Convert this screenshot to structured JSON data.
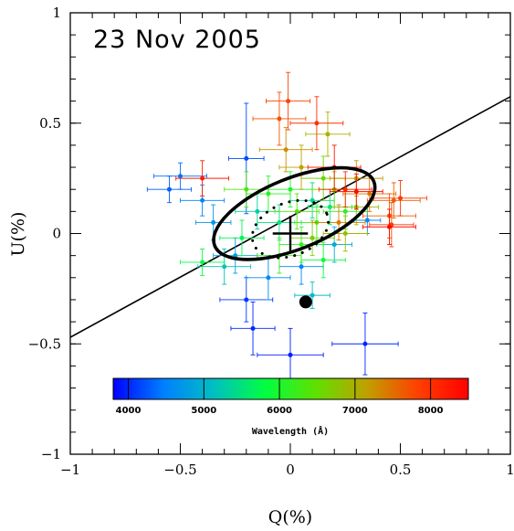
{
  "chart_data": {
    "type": "scatter",
    "title": "23 Nov 2005",
    "xlabel": "Q(%)",
    "ylabel": "U(%)",
    "xlim": [
      -1,
      1
    ],
    "ylim": [
      -1,
      1
    ],
    "x_ticks": [
      "−1",
      "−0.5",
      "0",
      "0.5",
      "1"
    ],
    "y_ticks": [
      "−1",
      "−0.5",
      "0",
      "0.5",
      "1"
    ],
    "x_tick_values": [
      -1,
      -0.5,
      0,
      0.5,
      1
    ],
    "y_tick_values": [
      -1,
      -0.5,
      0,
      0.5,
      1
    ],
    "grid": false,
    "colorbar": {
      "label": "Wavelength (Å)",
      "range": [
        3800,
        8500
      ],
      "ticks": [
        4000,
        5000,
        6000,
        7000,
        8000
      ],
      "tick_labels": [
        "4000",
        "5000",
        "6000",
        "7000",
        "8000"
      ],
      "colors": [
        "#0000ff",
        "#0080ff",
        "#00c0c0",
        "#00ff40",
        "#60e000",
        "#c0a000",
        "#ff4000",
        "#ff0000"
      ]
    },
    "fit_line": {
      "slope": 0.545,
      "intercept": 0.075
    },
    "mean_point": {
      "q": 0.0,
      "u": 0.0,
      "err_q": 0.08,
      "err_u": 0.08
    },
    "ellipse": {
      "center": [
        0.018,
        0.09
      ],
      "semi_major": 0.39,
      "semi_minor": 0.16,
      "angle_deg": 22
    },
    "dotted_ellipse": {
      "center": [
        0.0,
        0.02
      ],
      "semi_major": 0.18,
      "semi_minor": 0.12,
      "angle_deg": 22
    },
    "isp_point": {
      "q": 0.07,
      "u": -0.31
    },
    "series": [
      {
        "points": [
          {
            "q": -0.5,
            "u": 0.26,
            "w": 4400,
            "eq": 0.12,
            "eu": 0.06
          },
          {
            "q": -0.55,
            "u": 0.2,
            "w": 4300,
            "eq": 0.1,
            "eu": 0.06
          },
          {
            "q": -0.4,
            "u": 0.15,
            "w": 4500,
            "eq": 0.1,
            "eu": 0.07
          },
          {
            "q": -0.2,
            "u": 0.34,
            "w": 4200,
            "eq": 0.08,
            "eu": 0.25
          },
          {
            "q": -0.2,
            "u": -0.3,
            "w": 4100,
            "eq": 0.12,
            "eu": 0.1
          },
          {
            "q": -0.17,
            "u": -0.43,
            "w": 4000,
            "eq": 0.1,
            "eu": 0.12
          },
          {
            "q": 0.0,
            "u": -0.55,
            "w": 3950,
            "eq": 0.15,
            "eu": 0.12
          },
          {
            "q": 0.34,
            "u": -0.5,
            "w": 4000,
            "eq": 0.15,
            "eu": 0.14
          },
          {
            "q": 0.35,
            "u": 0.06,
            "w": 4600,
            "eq": 0.06,
            "eu": 0.06
          },
          {
            "q": -0.35,
            "u": 0.05,
            "w": 4700,
            "eq": 0.08,
            "eu": 0.08
          },
          {
            "q": -0.25,
            "u": -0.1,
            "w": 4800,
            "eq": 0.1,
            "eu": 0.08
          },
          {
            "q": 0.2,
            "u": -0.05,
            "w": 4900,
            "eq": 0.08,
            "eu": 0.08
          },
          {
            "q": -0.1,
            "u": -0.2,
            "w": 4600,
            "eq": 0.1,
            "eu": 0.1
          },
          {
            "q": 0.05,
            "u": -0.15,
            "w": 4500,
            "eq": 0.1,
            "eu": 0.08
          },
          {
            "q": 0.1,
            "u": -0.28,
            "w": 5100,
            "eq": 0.08,
            "eu": 0.06
          },
          {
            "q": -0.3,
            "u": -0.15,
            "w": 5200,
            "eq": 0.12,
            "eu": 0.08
          },
          {
            "q": -0.15,
            "u": 0.1,
            "w": 5300,
            "eq": 0.1,
            "eu": 0.08
          },
          {
            "q": 0.1,
            "u": 0.15,
            "w": 5400,
            "eq": 0.1,
            "eu": 0.08
          },
          {
            "q": -0.05,
            "u": 0.05,
            "w": 5500,
            "eq": 0.1,
            "eu": 0.08
          },
          {
            "q": 0.18,
            "u": 0.12,
            "w": 5600,
            "eq": 0.1,
            "eu": 0.08
          },
          {
            "q": -0.22,
            "u": -0.02,
            "w": 5700,
            "eq": 0.1,
            "eu": 0.08
          },
          {
            "q": -0.4,
            "u": -0.13,
            "w": 5800,
            "eq": 0.1,
            "eu": 0.06
          },
          {
            "q": 0.15,
            "u": -0.12,
            "w": 5900,
            "eq": 0.1,
            "eu": 0.08
          },
          {
            "q": 0.0,
            "u": 0.2,
            "w": 6000,
            "eq": 0.1,
            "eu": 0.08
          },
          {
            "q": -0.1,
            "u": 0.18,
            "w": 6100,
            "eq": 0.1,
            "eu": 0.08
          },
          {
            "q": 0.05,
            "u": -0.05,
            "w": 6150,
            "eq": 0.1,
            "eu": 0.08
          },
          {
            "q": 0.25,
            "u": 0.1,
            "w": 6200,
            "eq": 0.1,
            "eu": 0.08
          },
          {
            "q": -0.05,
            "u": -0.1,
            "w": 6250,
            "eq": 0.1,
            "eu": 0.08
          },
          {
            "q": 0.12,
            "u": 0.05,
            "w": 6300,
            "eq": 0.1,
            "eu": 0.08
          },
          {
            "q": -0.2,
            "u": 0.2,
            "w": 6350,
            "eq": 0.1,
            "eu": 0.08
          },
          {
            "q": 0.03,
            "u": 0.1,
            "w": 6400,
            "eq": 0.1,
            "eu": 0.08
          },
          {
            "q": 0.2,
            "u": 0.2,
            "w": 6500,
            "eq": 0.1,
            "eu": 0.08
          },
          {
            "q": 0.15,
            "u": 0.25,
            "w": 6600,
            "eq": 0.1,
            "eu": 0.1
          },
          {
            "q": 0.1,
            "u": -0.02,
            "w": 6700,
            "eq": 0.1,
            "eu": 0.08
          },
          {
            "q": 0.3,
            "u": 0.12,
            "w": 6800,
            "eq": 0.1,
            "eu": 0.08
          },
          {
            "q": 0.25,
            "u": 0.0,
            "w": 6900,
            "eq": 0.1,
            "eu": 0.08
          },
          {
            "q": 0.17,
            "u": 0.45,
            "w": 7000,
            "eq": 0.1,
            "eu": 0.1
          },
          {
            "q": 0.05,
            "u": 0.3,
            "w": 7100,
            "eq": 0.1,
            "eu": 0.1
          },
          {
            "q": 0.3,
            "u": 0.25,
            "w": 7200,
            "eq": 0.12,
            "eu": 0.08
          },
          {
            "q": -0.02,
            "u": 0.38,
            "w": 7300,
            "eq": 0.12,
            "eu": 0.1
          },
          {
            "q": 0.22,
            "u": 0.05,
            "w": 7400,
            "eq": 0.12,
            "eu": 0.08
          },
          {
            "q": 0.36,
            "u": 0.18,
            "w": 7500,
            "eq": 0.12,
            "eu": 0.08
          },
          {
            "q": 0.47,
            "u": 0.15,
            "w": 7600,
            "eq": 0.12,
            "eu": 0.08
          },
          {
            "q": 0.45,
            "u": 0.08,
            "w": 7650,
            "eq": 0.12,
            "eu": 0.1
          },
          {
            "q": -0.05,
            "u": 0.52,
            "w": 7700,
            "eq": 0.12,
            "eu": 0.12
          },
          {
            "q": -0.01,
            "u": 0.6,
            "w": 7800,
            "eq": 0.1,
            "eu": 0.13
          },
          {
            "q": 0.46,
            "u": 0.04,
            "w": 7850,
            "eq": 0.1,
            "eu": 0.1
          },
          {
            "q": 0.5,
            "u": 0.16,
            "w": 7900,
            "eq": 0.12,
            "eu": 0.08
          },
          {
            "q": 0.12,
            "u": 0.5,
            "w": 8000,
            "eq": 0.12,
            "eu": 0.12
          },
          {
            "q": 0.25,
            "u": 0.2,
            "w": 8100,
            "eq": 0.12,
            "eu": 0.08
          },
          {
            "q": -0.4,
            "u": 0.25,
            "w": 8200,
            "eq": 0.12,
            "eu": 0.08
          },
          {
            "q": 0.2,
            "u": 0.3,
            "w": 8300,
            "eq": 0.12,
            "eu": 0.1
          },
          {
            "q": 0.3,
            "u": 0.19,
            "w": 8400,
            "eq": 0.12,
            "eu": 0.08
          },
          {
            "q": 0.45,
            "u": 0.03,
            "w": 8450,
            "eq": 0.12,
            "eu": 0.08
          }
        ]
      }
    ]
  }
}
